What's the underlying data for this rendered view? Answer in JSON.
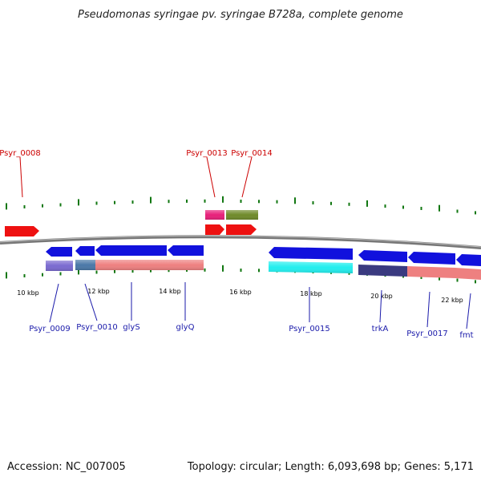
{
  "title": "Pseudomonas syringae pv. syringae B728a, complete genome",
  "footer": {
    "accession": "Accession: NC_007005",
    "summary": "Topology: circular; Length: 6,093,698 bp; Genes: 5,171"
  },
  "scale_labels": [
    "10 kbp",
    "12 kbp",
    "14 kbp",
    "16 kbp",
    "18 kbp",
    "20 kbp",
    "22 kbp"
  ],
  "gene_labels": {
    "top": [
      "Psyr_0008",
      "Psyr_0013",
      "Psyr_0014"
    ],
    "bottom": [
      "Psyr_0009",
      "Psyr_0010",
      "glyS",
      "glyQ",
      "Psyr_0015",
      "trkA",
      "Psyr_0017",
      "fmt"
    ]
  },
  "colors": {
    "forward": "#ee1111",
    "reverse": "#1111dd",
    "backbone": "#777777",
    "ticks": "#117711",
    "pink": "#e8207a",
    "olive": "#6f8a2a",
    "salmon": "#ee8080",
    "cyan": "#22eeee",
    "purple": "#7a6ad0",
    "steel": "#4a78a8",
    "navy": "#3a3a80",
    "label_red": "#cc0000",
    "label_blue": "#1a1aaa"
  }
}
